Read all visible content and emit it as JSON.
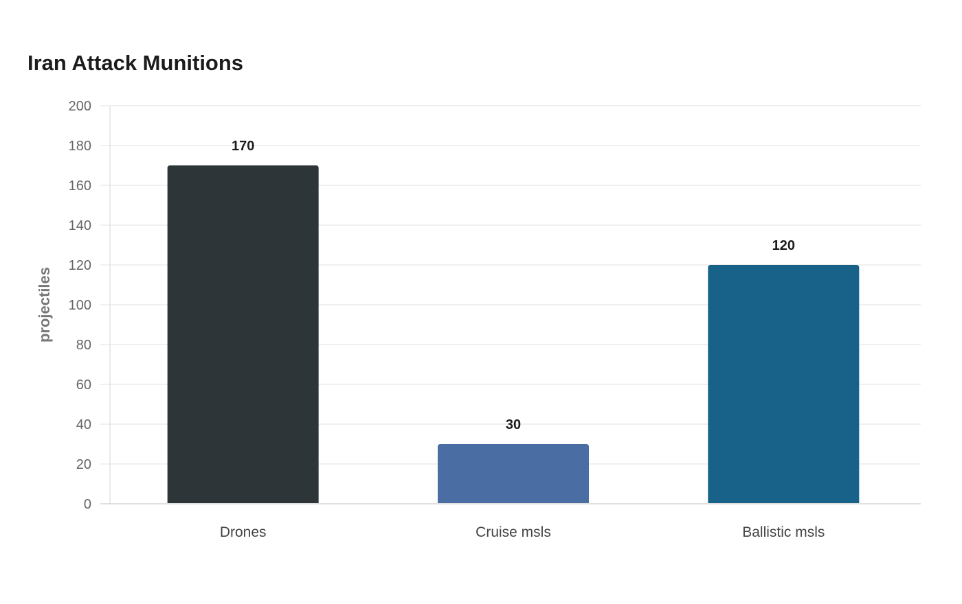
{
  "chart_data": {
    "type": "bar",
    "title": "Iran Attack Munitions",
    "xlabel": "",
    "ylabel": "projectiles",
    "categories": [
      "Drones",
      "Cruise msls",
      "Ballistic msls"
    ],
    "values": [
      170,
      30,
      120
    ],
    "colors": [
      "#2e3538",
      "#4a6ea4",
      "#186289"
    ],
    "ylim": [
      0,
      200
    ],
    "yticks": [
      "0",
      "20",
      "40",
      "60",
      "80",
      "100",
      "120",
      "140",
      "160",
      "180",
      "200"
    ],
    "grid": true,
    "legend": "none",
    "data_labels": [
      "170",
      "30",
      "120"
    ]
  }
}
